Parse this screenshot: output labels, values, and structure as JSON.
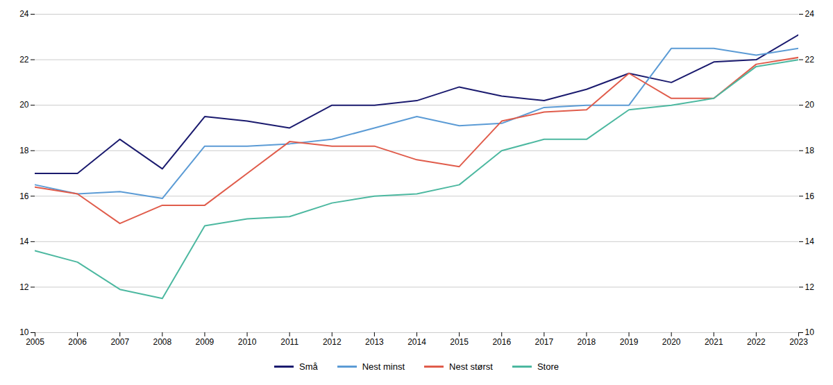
{
  "chart_data": {
    "type": "line",
    "x": [
      2005,
      2006,
      2007,
      2008,
      2009,
      2010,
      2011,
      2012,
      2013,
      2014,
      2015,
      2016,
      2017,
      2018,
      2019,
      2020,
      2021,
      2022,
      2023
    ],
    "series": [
      {
        "name": "Små",
        "color": "#1a1a6e",
        "values": [
          17.0,
          17.0,
          18.5,
          17.2,
          19.5,
          19.3,
          19.0,
          20.0,
          20.0,
          20.2,
          20.8,
          20.4,
          20.2,
          20.7,
          21.4,
          21.0,
          21.9,
          22.0,
          23.1
        ]
      },
      {
        "name": "Nest minst",
        "color": "#5b9bd5",
        "values": [
          16.5,
          16.1,
          16.2,
          15.9,
          18.2,
          18.2,
          18.3,
          18.5,
          19.0,
          19.5,
          19.1,
          19.2,
          19.9,
          20.0,
          20.0,
          22.5,
          22.5,
          22.2,
          22.5
        ]
      },
      {
        "name": "Nest størst",
        "color": "#e05c4b",
        "values": [
          16.4,
          16.1,
          14.8,
          15.6,
          15.6,
          17.0,
          18.4,
          18.2,
          18.2,
          17.6,
          17.3,
          19.3,
          19.7,
          19.8,
          21.4,
          20.3,
          20.3,
          21.8,
          22.1
        ]
      },
      {
        "name": "Store",
        "color": "#4cb8a0",
        "values": [
          13.6,
          13.1,
          11.9,
          11.5,
          14.7,
          15.0,
          15.1,
          15.7,
          16.0,
          16.1,
          16.5,
          18.0,
          18.5,
          18.5,
          19.8,
          20.0,
          20.3,
          21.7,
          22.0
        ]
      }
    ],
    "xlim": [
      2005,
      2023
    ],
    "xticks": [
      2005,
      2006,
      2007,
      2008,
      2009,
      2010,
      2011,
      2012,
      2013,
      2014,
      2015,
      2016,
      2017,
      2018,
      2019,
      2020,
      2021,
      2022,
      2023
    ],
    "ylim": [
      10,
      24
    ],
    "yticks": [
      10,
      12,
      14,
      16,
      18,
      20,
      22,
      24
    ],
    "y2lim": [
      10,
      24
    ],
    "y2ticks": [
      10,
      12,
      14,
      16,
      18,
      20,
      22,
      24
    ],
    "grid": true,
    "legend": "bottom"
  }
}
